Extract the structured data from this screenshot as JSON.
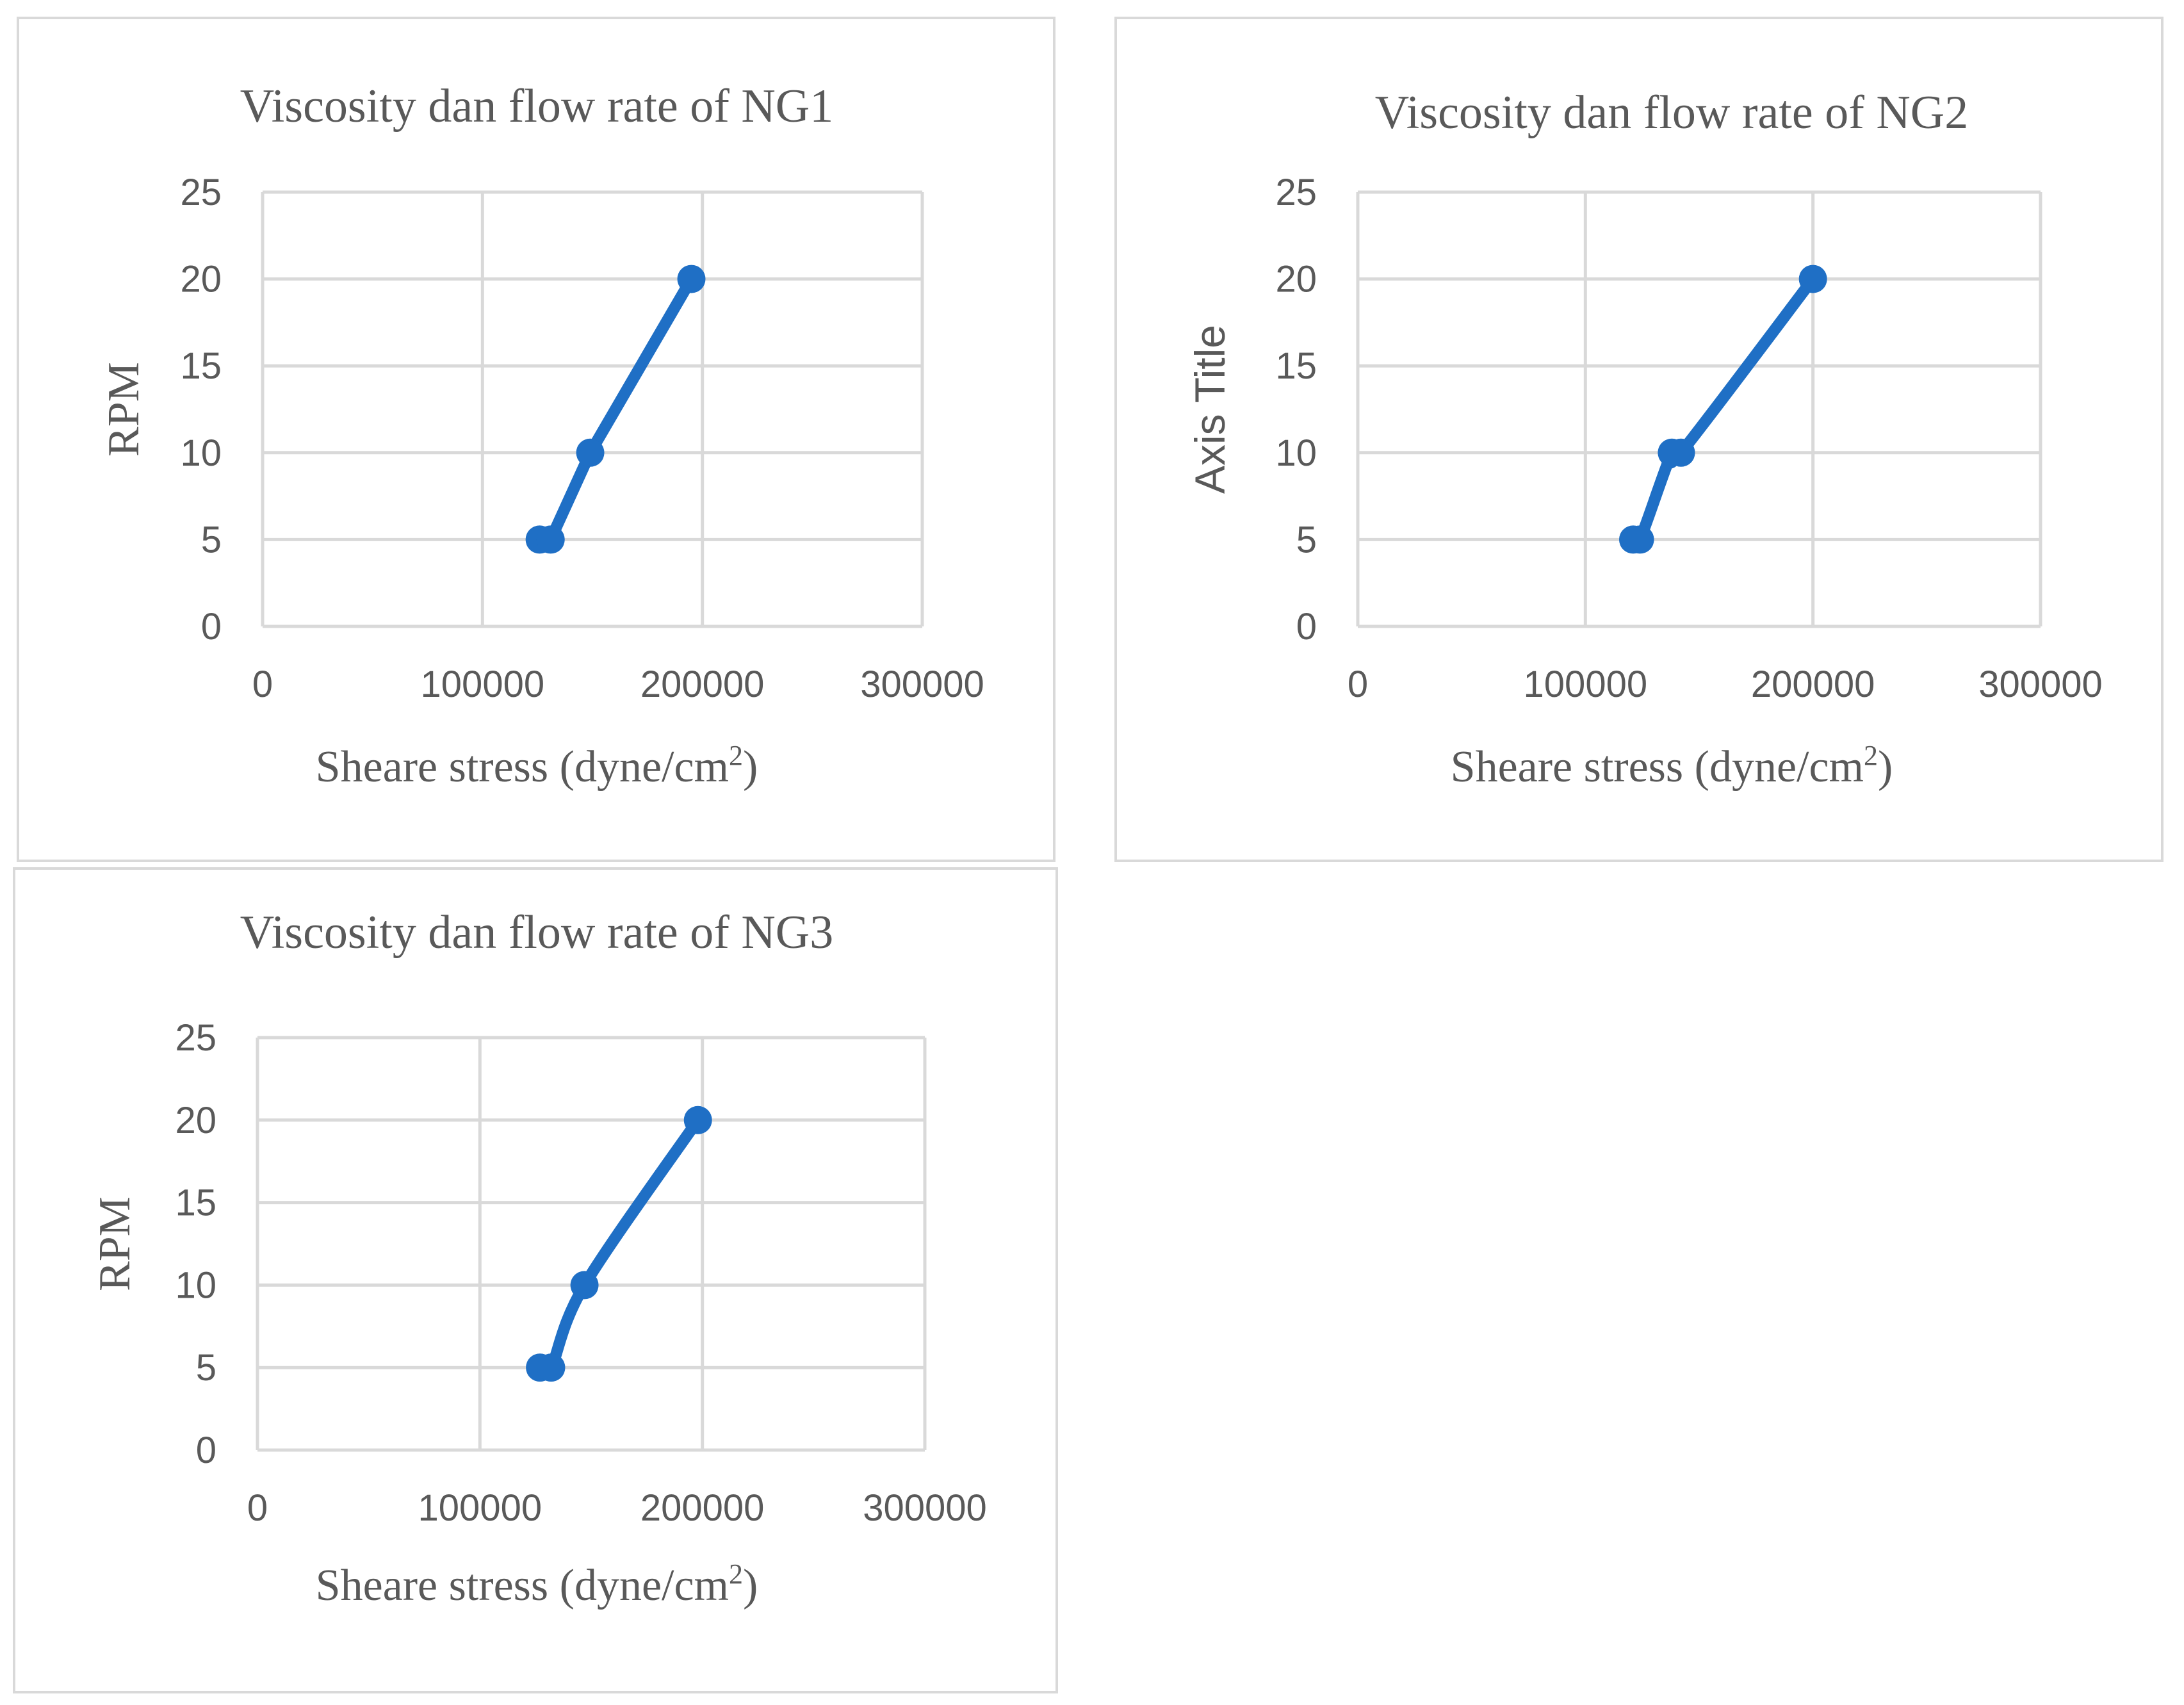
{
  "chart_data": [
    {
      "type": "scatter",
      "title": "Viscosity dan flow rate of NG1",
      "xlabel": "Sheare stress (dyne/cm",
      "xlabel_sup": "2",
      "xlabel_suffix": ")",
      "ylabel": "RPM",
      "xlim": [
        0,
        300000
      ],
      "ylim": [
        0,
        25
      ],
      "xticks": [
        "0",
        "100000",
        "200000",
        "300000"
      ],
      "yticks": [
        "0",
        "5",
        "10",
        "15",
        "20",
        "25"
      ],
      "grid": true,
      "line_style": "straight",
      "series": [
        {
          "x": [
            126000,
            131000,
            149000,
            195000
          ],
          "y": [
            5,
            5,
            10,
            20
          ],
          "color": "#1f6fc5"
        }
      ]
    },
    {
      "type": "scatter",
      "title": "Viscosity dan flow rate of NG2",
      "xlabel": "Sheare stress (dyne/cm",
      "xlabel_sup": "2",
      "xlabel_suffix": ")",
      "ylabel": "Axis Title",
      "xlim": [
        0,
        300000
      ],
      "ylim": [
        0,
        25
      ],
      "xticks": [
        "0",
        "100000",
        "200000",
        "300000"
      ],
      "yticks": [
        "0",
        "5",
        "10",
        "15",
        "20",
        "25"
      ],
      "grid": true,
      "line_style": "smooth",
      "series": [
        {
          "x": [
            121000,
            124000,
            138000,
            142000,
            200000
          ],
          "y": [
            5,
            5,
            10,
            10,
            20
          ],
          "color": "#1f6fc5"
        }
      ]
    },
    {
      "type": "scatter",
      "title": "Viscosity dan flow rate of NG3",
      "xlabel": "Sheare stress (dyne/cm",
      "xlabel_sup": "2",
      "xlabel_suffix": ")",
      "ylabel": "RPM",
      "xlim": [
        0,
        300000
      ],
      "ylim": [
        0,
        25
      ],
      "xticks": [
        "0",
        "100000",
        "200000",
        "300000"
      ],
      "yticks": [
        "0",
        "5",
        "10",
        "15",
        "20",
        "25"
      ],
      "grid": true,
      "line_style": "smooth",
      "series": [
        {
          "x": [
            127000,
            132000,
            147000,
            198000
          ],
          "y": [
            5,
            5,
            10,
            20
          ],
          "color": "#1f6fc5"
        }
      ]
    }
  ]
}
